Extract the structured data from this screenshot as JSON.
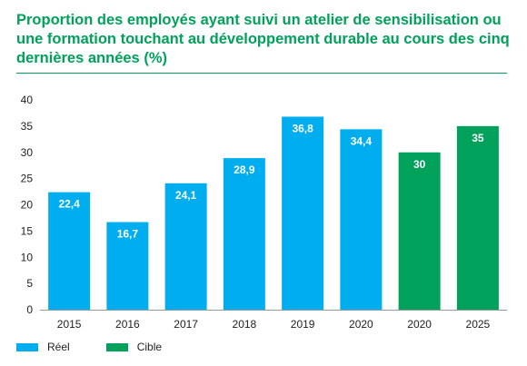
{
  "title": "Proportion des employés ayant suivi un atelier de sensibilisation ou une formation touchant au développement durable au cours des cinq dernières années (%)",
  "colors": {
    "reel": "#00aeef",
    "cible": "#00a15a",
    "title": "#00a15a"
  },
  "legend": [
    {
      "label": "Réel",
      "color": "#00aeef"
    },
    {
      "label": "Cible",
      "color": "#00a15a"
    }
  ],
  "chart_data": {
    "type": "bar",
    "categories": [
      "2015",
      "2016",
      "2017",
      "2018",
      "2019",
      "2020",
      "2020",
      "2025"
    ],
    "values": [
      22.4,
      16.7,
      24.1,
      28.9,
      36.8,
      34.4,
      30,
      35
    ],
    "value_labels": [
      "22,4",
      "16,7",
      "24,1",
      "28,9",
      "36,8",
      "34,4",
      "30",
      "35"
    ],
    "bar_series": [
      "Réel",
      "Réel",
      "Réel",
      "Réel",
      "Réel",
      "Réel",
      "Cible",
      "Cible"
    ],
    "ylim": [
      0,
      40
    ],
    "yticks": [
      0,
      5,
      10,
      15,
      20,
      25,
      30,
      35,
      40
    ],
    "grid": false,
    "legend_position": "bottom-left"
  }
}
